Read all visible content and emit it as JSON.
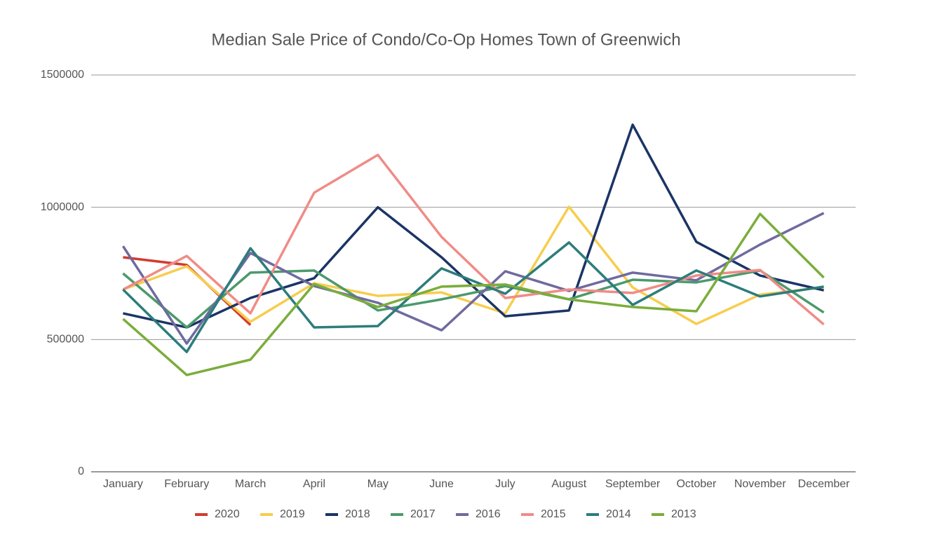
{
  "chart_data": {
    "type": "line",
    "title": "Median Sale Price of Condo/Co-Op Homes Town of Greenwich",
    "categories": [
      "January",
      "February",
      "March",
      "April",
      "May",
      "June",
      "July",
      "August",
      "September",
      "October",
      "November",
      "December"
    ],
    "ylim": [
      0,
      1500000
    ],
    "yticks": [
      0,
      500000,
      1000000,
      1500000
    ],
    "grid": true,
    "legend": "bottom",
    "series": [
      {
        "name": "2020",
        "color": "#d33b2f",
        "values": [
          811000,
          782000,
          555000,
          null,
          null,
          null,
          null,
          null,
          null,
          null,
          null,
          null
        ]
      },
      {
        "name": "2019",
        "color": "#f7cd4e",
        "values": [
          689000,
          777000,
          567000,
          713000,
          665000,
          678000,
          599000,
          1002000,
          697000,
          559000,
          670000,
          697000
        ]
      },
      {
        "name": "2018",
        "color": "#1b3466",
        "values": [
          599000,
          546000,
          657000,
          732000,
          1000000,
          811000,
          588000,
          610000,
          1312000,
          869000,
          742000,
          686000
        ]
      },
      {
        "name": "2017",
        "color": "#4c9a6b",
        "values": [
          750000,
          546000,
          753000,
          761000,
          610000,
          652000,
          702000,
          652000,
          726000,
          716000,
          761000,
          602000
        ]
      },
      {
        "name": "2016",
        "color": "#6f6aa0",
        "values": [
          853000,
          485000,
          827000,
          702000,
          639000,
          535000,
          758000,
          684000,
          753000,
          724000,
          859000,
          978000
        ]
      },
      {
        "name": "2015",
        "color": "#f08b87",
        "values": [
          689000,
          816000,
          599000,
          1055000,
          1198000,
          888000,
          657000,
          689000,
          676000,
          742000,
          763000,
          557000
        ]
      },
      {
        "name": "2014",
        "color": "#2c7d7b",
        "values": [
          689000,
          453000,
          845000,
          546000,
          551000,
          769000,
          673000,
          867000,
          631000,
          761000,
          663000,
          700000
        ]
      },
      {
        "name": "2013",
        "color": "#7bad3b",
        "values": [
          578000,
          366000,
          424000,
          710000,
          623000,
          700000,
          708000,
          652000,
          623000,
          607000,
          975000,
          734000
        ]
      }
    ]
  }
}
